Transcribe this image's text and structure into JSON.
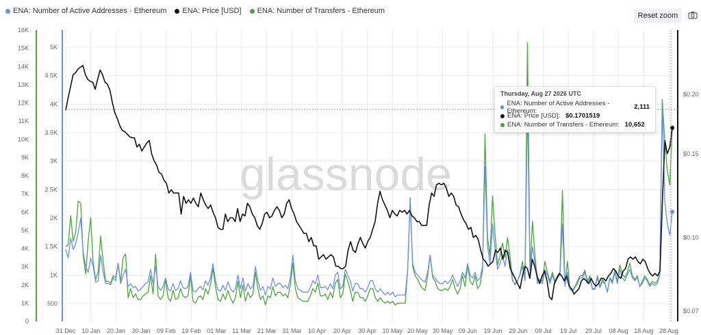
{
  "legend": {
    "series1": "ENA: Number of Active Addresses - Ethereum",
    "series2": "ENA: Price [USD]",
    "series3": "ENA: Number of Transfers - Ethereum"
  },
  "toolbar": {
    "reset_zoom_label": "Reset zoom",
    "camera_icon": "camera-icon"
  },
  "watermark": "glassnode",
  "tooltip": {
    "date": "Thursday, Aug 27 2026 UTC",
    "rows": [
      {
        "label": "ENA: Number of Active Addresses - Ethereum:",
        "value": "2,111"
      },
      {
        "label": "ENA: Price [USD]:",
        "value": "$0.1701519"
      },
      {
        "label": "ENA: Number of Transfers - Ethereum:",
        "value": "10,652"
      }
    ]
  },
  "colors": {
    "addresses": "#6b8fe8",
    "price": "#111111",
    "transfers": "#4aa63c",
    "grid": "#ececec"
  },
  "chart_data": {
    "type": "line",
    "x_ticks": [
      "31 Dec",
      "10 Jan",
      "20 Jan",
      "30 Jan",
      "09 Feb",
      "19 Feb",
      "01 Mar",
      "11 Mar",
      "21 Mar",
      "31 Mar",
      "10 Apr",
      "20 Apr",
      "30 Apr",
      "10 May",
      "20 May",
      "30 May",
      "09 Jun",
      "19 Jun",
      "29 Jun",
      "09 Jul",
      "19 Jul",
      "29 Jul",
      "08 Aug",
      "18 Aug",
      "28 Aug"
    ],
    "axes": {
      "transfers": {
        "ticks": [
          "0",
          "1K",
          "2K",
          "3K",
          "4K",
          "5K",
          "6K",
          "7K",
          "8K",
          "9K",
          "10K",
          "11K",
          "12K",
          "13K",
          "14K",
          "15K",
          "16K"
        ],
        "range": [
          0,
          16000
        ]
      },
      "addresses": {
        "ticks": [
          "500",
          "1K",
          "1.5K",
          "2K",
          "2.5K",
          "3K",
          "3.5K",
          "4K",
          "4.5K",
          "5K"
        ],
        "range": [
          250,
          5400
        ]
      },
      "price": {
        "ticks": [
          "$0.07",
          "$0.10",
          "$0.15",
          "$0.20"
        ],
        "scale": "log",
        "range": [
          0.065,
          0.26
        ]
      }
    },
    "series": [
      {
        "name": "ENA: Number of Transfers - Ethereum",
        "color": "#4aa63c",
        "axis": "transfers",
        "values": [
          4100,
          4200,
          5800,
          4400,
          4900,
          6600,
          6500,
          3600,
          2600,
          4400,
          5700,
          3200,
          2300,
          2700,
          4700,
          3300,
          2200,
          2200,
          2100,
          2500,
          2400,
          3200,
          2200,
          3500,
          3700,
          1300,
          1800,
          1300,
          1500,
          1200,
          1200,
          1400,
          1500,
          1600,
          2500,
          1500,
          3700,
          1400,
          1200,
          1400,
          2300,
          1300,
          1100,
          1700,
          1200,
          1300,
          1800,
          1400,
          1300,
          1400,
          2500,
          1100,
          1000,
          1300,
          1400,
          1200,
          1800,
          1500,
          2000,
          2900,
          1900,
          1200,
          1100,
          1500,
          1200,
          1700,
          1300,
          1000,
          1300,
          2200,
          1300,
          2000,
          1100,
          1600,
          1300,
          1500,
          2700,
          1800,
          1200,
          1400,
          900,
          1400,
          1300,
          1900,
          1400,
          1600,
          1600,
          1400,
          1500,
          1300,
          2000,
          3200,
          1800,
          1300,
          1200,
          1100,
          1100,
          1100,
          1400,
          1800,
          1600,
          2100,
          1400,
          1400,
          1500,
          1200,
          1600,
          1300,
          2100,
          2300,
          1300,
          1500,
          2600,
          2200,
          1700,
          1100,
          1600,
          1600,
          1300,
          1300,
          1100,
          1400,
          1800,
          1800,
          1300,
          1100,
          1300,
          1100,
          1000,
          1100,
          1000,
          1100,
          900,
          1000,
          1000,
          1000,
          1000,
          2800,
          6800,
          3000,
          2500,
          2300,
          2000,
          1800,
          1700,
          2500,
          3600,
          2400,
          2200,
          1800,
          1700,
          1700,
          1800,
          1700,
          1900,
          2300,
          1800,
          1500,
          1800,
          2500,
          1900,
          3100,
          2200,
          2000,
          2500,
          1800,
          2000,
          2800,
          10300,
          4600,
          3600,
          6900,
          4800,
          3100,
          3600,
          4300,
          3500,
          4600,
          3600,
          2300,
          2000,
          2200,
          2600,
          3300,
          2300,
          15300,
          2800,
          5500,
          3600,
          2200,
          2300,
          2200,
          3300,
          2700,
          2200,
          2700,
          2200,
          2500,
          2600,
          7200,
          2000,
          3300,
          1800,
          1700,
          1900,
          2200,
          2500,
          2500,
          2800,
          2200,
          2500,
          1800,
          1800,
          2500,
          1900,
          2300,
          2100,
          1600,
          2400,
          2200,
          2800,
          2200,
          3100,
          2600,
          2400,
          2700,
          3200,
          2500,
          2300,
          2500,
          1900,
          2200,
          2500,
          2300,
          2000,
          2200,
          2100,
          2200,
          2600,
          12200,
          9900,
          8300,
          7500,
          10652
        ]
      },
      {
        "name": "ENA: Number of Active Addresses - Ethereum",
        "color": "#6b8fe8",
        "axis": "addresses",
        "values": [
          1450,
          1300,
          1650,
          1450,
          1550,
          1750,
          2000,
          1400,
          1150,
          1050,
          1300,
          1150,
          880,
          900,
          1350,
          1050,
          850,
          850,
          830,
          950,
          900,
          1200,
          850,
          1000,
          1100,
          800,
          850,
          780,
          800,
          720,
          750,
          800,
          850,
          880,
          1100,
          850,
          1150,
          800,
          730,
          800,
          950,
          760,
          720,
          850,
          730,
          760,
          900,
          780,
          760,
          800,
          1050,
          720,
          700,
          760,
          800,
          740,
          900,
          820,
          950,
          1200,
          900,
          740,
          720,
          820,
          730,
          880,
          760,
          700,
          760,
          1000,
          760,
          950,
          720,
          850,
          760,
          800,
          1150,
          900,
          730,
          800,
          650,
          800,
          760,
          950,
          800,
          850,
          850,
          780,
          820,
          760,
          950,
          1350,
          900,
          760,
          730,
          700,
          700,
          700,
          780,
          900,
          850,
          1000,
          780,
          780,
          800,
          740,
          850,
          760,
          1000,
          1050,
          760,
          800,
          1100,
          1000,
          900,
          720,
          850,
          850,
          760,
          760,
          700,
          780,
          900,
          900,
          760,
          700,
          760,
          700,
          650,
          700,
          650,
          700,
          620,
          650,
          650,
          650,
          650,
          1100,
          2300,
          1200,
          1050,
          1000,
          950,
          900,
          880,
          1050,
          1350,
          1000,
          950,
          880,
          850,
          850,
          900,
          850,
          900,
          1000,
          900,
          800,
          900,
          1050,
          950,
          1200,
          1000,
          950,
          1050,
          900,
          950,
          1150,
          2900,
          1500,
          1200,
          1900,
          1450,
          1100,
          1200,
          1350,
          1150,
          1450,
          1200,
          900,
          850,
          900,
          1000,
          1150,
          900,
          4000,
          1000,
          1500,
          1200,
          850,
          900,
          850,
          1100,
          1000,
          850,
          1000,
          850,
          950,
          1000,
          1900,
          800,
          1050,
          750,
          720,
          780,
          850,
          950,
          950,
          1050,
          850,
          950,
          750,
          750,
          950,
          780,
          880,
          850,
          700,
          950,
          850,
          1050,
          850,
          1100,
          950,
          900,
          1000,
          1100,
          950,
          900,
          950,
          800,
          850,
          950,
          900,
          800,
          850,
          820,
          850,
          1000,
          4000,
          2300,
          1900,
          1700,
          2111
        ]
      },
      {
        "name": "ENA: Price [USD]",
        "color": "#111111",
        "axis": "price",
        "values": [
          0.185,
          0.197,
          0.208,
          0.22,
          0.222,
          0.226,
          0.228,
          0.23,
          0.22,
          0.215,
          0.213,
          0.212,
          0.205,
          0.215,
          0.225,
          0.22,
          0.212,
          0.21,
          0.204,
          0.192,
          0.183,
          0.178,
          0.172,
          0.168,
          0.167,
          0.165,
          0.163,
          0.162,
          0.162,
          0.155,
          0.157,
          0.152,
          0.155,
          0.158,
          0.16,
          0.15,
          0.145,
          0.142,
          0.137,
          0.136,
          0.132,
          0.13,
          0.124,
          0.126,
          0.124,
          0.124,
          0.124,
          0.112,
          0.122,
          0.118,
          0.12,
          0.118,
          0.121,
          0.118,
          0.116,
          0.124,
          0.12,
          0.117,
          0.115,
          0.117,
          0.113,
          0.11,
          0.105,
          0.104,
          0.104,
          0.112,
          0.108,
          0.11,
          0.11,
          0.108,
          0.115,
          0.108,
          0.112,
          0.111,
          0.118,
          0.116,
          0.112,
          0.11,
          0.106,
          0.104,
          0.107,
          0.112,
          0.113,
          0.11,
          0.111,
          0.114,
          0.116,
          0.114,
          0.11,
          0.112,
          0.118,
          0.12,
          0.115,
          0.112,
          0.108,
          0.106,
          0.104,
          0.102,
          0.102,
          0.098,
          0.1,
          0.096,
          0.096,
          0.09,
          0.091,
          0.092,
          0.09,
          0.091,
          0.092,
          0.091,
          0.087,
          0.087,
          0.086,
          0.086,
          0.087,
          0.094,
          0.098,
          0.094,
          0.093,
          0.097,
          0.1,
          0.097,
          0.095,
          0.098,
          0.1,
          0.104,
          0.108,
          0.118,
          0.125,
          0.12,
          0.117,
          0.114,
          0.11,
          0.114,
          0.112,
          0.111,
          0.114,
          0.113,
          0.114,
          0.112,
          0.114,
          0.111,
          0.11,
          0.108,
          0.108,
          0.106,
          0.106,
          0.106,
          0.117,
          0.124,
          0.122,
          0.129,
          0.13,
          0.129,
          0.13,
          0.127,
          0.122,
          0.124,
          0.122,
          0.117,
          0.116,
          0.112,
          0.109,
          0.107,
          0.104,
          0.105,
          0.1,
          0.101,
          0.099,
          0.094,
          0.09,
          0.089,
          0.087,
          0.088,
          0.089,
          0.094,
          0.093,
          0.095,
          0.09,
          0.094,
          0.093,
          0.086,
          0.084,
          0.082,
          0.08,
          0.078,
          0.083,
          0.087,
          0.086,
          0.082,
          0.09,
          0.087,
          0.083,
          0.08,
          0.083,
          0.085,
          0.081,
          0.075,
          0.074,
          0.08,
          0.082,
          0.084,
          0.083,
          0.081,
          0.083,
          0.079,
          0.078,
          0.076,
          0.077,
          0.078,
          0.081,
          0.082,
          0.081,
          0.08,
          0.082,
          0.08,
          0.079,
          0.08,
          0.082,
          0.082,
          0.081,
          0.083,
          0.084,
          0.086,
          0.085,
          0.083,
          0.082,
          0.085,
          0.086,
          0.09,
          0.091,
          0.09,
          0.091,
          0.089,
          0.088,
          0.09,
          0.089,
          0.086,
          0.084,
          0.083,
          0.084,
          0.083,
          0.085,
          0.12,
          0.16,
          0.15,
          0.155,
          0.17
        ]
      }
    ]
  }
}
